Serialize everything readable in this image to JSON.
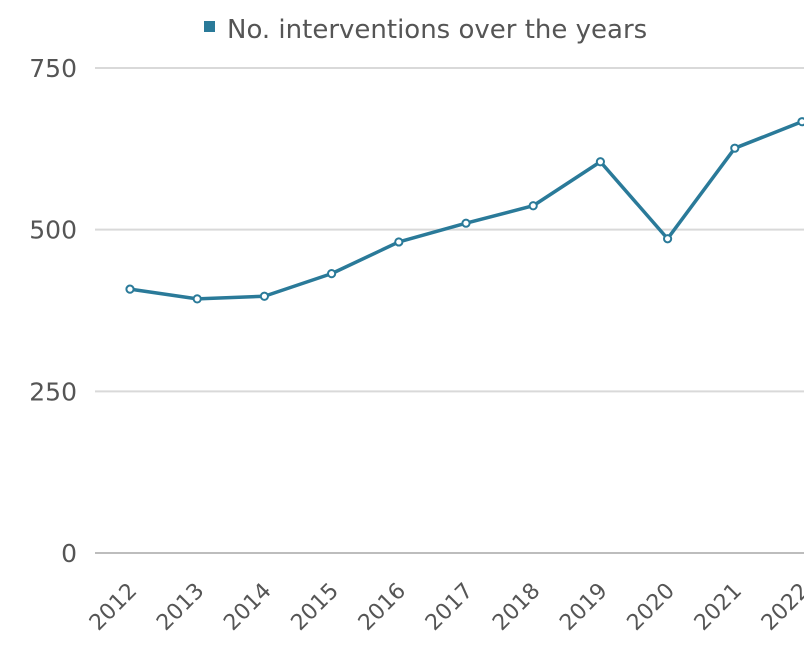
{
  "colors": {
    "series": "#2a7a99",
    "grid": "#d9d9d9",
    "text": "#555555"
  },
  "legend": {
    "label": "No. interventions over the years"
  },
  "chart_data": {
    "type": "line",
    "title": "",
    "xlabel": "",
    "ylabel": "",
    "x": [
      "2012",
      "2013",
      "2014",
      "2015",
      "2016",
      "2017",
      "2018",
      "2019",
      "2020",
      "2021",
      "2022"
    ],
    "ylim": [
      0,
      750
    ],
    "yticks": [
      "0",
      "250",
      "500",
      "750"
    ],
    "grid": true,
    "legend_position": "top",
    "series": [
      {
        "name": "No. interventions over the years",
        "values": [
          408,
          393,
          397,
          432,
          481,
          510,
          537,
          605,
          486,
          626,
          667
        ]
      }
    ]
  }
}
